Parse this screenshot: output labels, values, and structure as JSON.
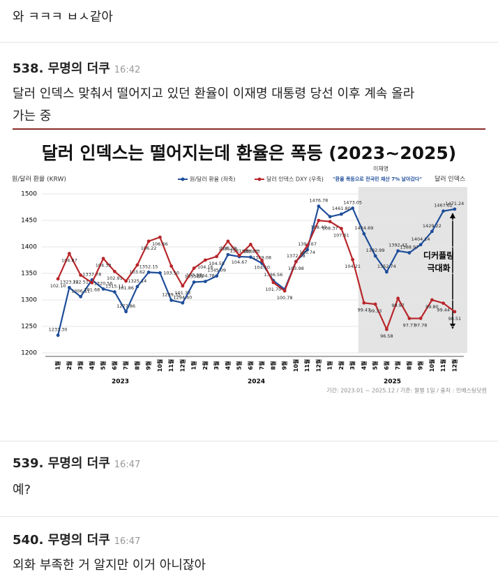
{
  "prev_text": "와 ㅋㅋㅋ ㅂㅅ같아",
  "posts": [
    {
      "number": "538.",
      "author": "무명의 더쿠",
      "time": "16:42",
      "text": [
        "달러 인덱스 맞춰서 떨어지고 있던 환율이 이재명 대통령 당선 이후 계속 올라",
        "가는 중"
      ]
    },
    {
      "number": "539.",
      "author": "무명의 더쿠",
      "time": "16:47",
      "text": [
        "예?"
      ]
    },
    {
      "number": "540.",
      "author": "무명의 더쿠",
      "time": "16:47",
      "text": [
        "외화 부족한 거 알지만 이거 아니잖아"
      ]
    }
  ],
  "chart_data": {
    "type": "line",
    "title": "달러 인덱스는 떨어지는데 환율은 폭등 (2023~2025)",
    "y_label": "원/달러 환율 (KRW)",
    "right_label": "달러 인덱스",
    "annotation_name": "이재명",
    "annotation_quote": "\"환율 폭등으로 전국민 재산 7% 날아갔다\"",
    "decoupling": [
      "디커플링",
      "극대화"
    ],
    "footnote": "기간: 2023.01 ~ 2025.12 / 기준: 월별 1일 / 출처 : 인베스팅닷컴",
    "years": [
      "2023",
      "2024",
      "2025"
    ],
    "categories": [
      "1월",
      "2월",
      "3월",
      "4월",
      "5월",
      "6월",
      "7월",
      "8월",
      "9월",
      "10월",
      "11월",
      "12월",
      "1월",
      "2월",
      "3월",
      "4월",
      "5월",
      "6월",
      "7월",
      "8월",
      "9월",
      "10월",
      "11월",
      "12월",
      "1월",
      "2월",
      "3월",
      "4월",
      "5월",
      "6월",
      "7월",
      "8월",
      "9월",
      "10월",
      "11월",
      "12월"
    ],
    "ylim": [
      1200,
      1500
    ],
    "yticks": [
      1200,
      1250,
      1300,
      1350,
      1400,
      1450,
      1500
    ],
    "y2lim": [
      94,
      111.4
    ],
    "series": [
      {
        "name": "원/달러 환율 (좌축)",
        "color": "#1f4e9a",
        "values": [
          1233.3,
          1323.22,
          1306.11,
          1337.78,
          1320.56,
          1315.11,
          1277.86,
          1325.14,
          1352.15,
          1351,
          1299.35,
          1294.4,
          1333.59,
          1334.78,
          1345.09,
          1385.38,
          1381.68,
          1380.73,
          1369.08,
          1336.56,
          1320,
          1372.58,
          1394.67,
          1476.78,
          1457,
          1461.8,
          1473.05,
          1424.69,
          1382.99,
          1352.74,
          1392.47,
          1388.97,
          1404.14,
          1429.22,
          1467.62,
          1471.24
        ],
        "value_labels": [
          "1233.30",
          "1323.22",
          "1306.11",
          "1337.78",
          "1320.56",
          "1315.11",
          "1277.86",
          "1325.14",
          "1352.15",
          null,
          "1299.35",
          "1294.40",
          "1333.59",
          "1334.78",
          "1345.09",
          "1385.38",
          "1381.68",
          "1380.73",
          "1369.08",
          "1336.56",
          null,
          "1372.58",
          "1394.67",
          "1476.78",
          null,
          "1461.80",
          "1473.05",
          "1424.69",
          "1382.99",
          "1352.74",
          "1392.47",
          "1388.97",
          "1404.14",
          "1429.22",
          "1467.62",
          "1471.24"
        ]
      },
      {
        "name": "달러 인덱스 DXY (우축)",
        "color": "#b8262b",
        "axis": "y2",
        "values": [
          102.1,
          104.87,
          102.51,
          101.68,
          104.33,
          102.91,
          101.86,
          103.62,
          106.22,
          106.66,
          103.5,
          101.33,
          103.27,
          104.16,
          104.55,
          106.22,
          104.67,
          105.87,
          104.1,
          101.7,
          100.78,
          103.98,
          105.74,
          108.49,
          108.37,
          107.61,
          104.21,
          99.47,
          99.33,
          96.58,
          99.97,
          97.77,
          97.78,
          99.8,
          99.44,
          98.51
        ],
        "value_labels": [
          "102.10",
          "104.87",
          "102.51",
          "101.68",
          "104.33",
          "102.91",
          "101.86",
          "103.62",
          "106.22",
          "106.66",
          "103.50",
          "101.33",
          "103.27",
          "104.16",
          "104.55",
          "106.22",
          "104.67",
          "105.87",
          "104.10",
          "101.70",
          "100.78",
          "103.98",
          "105.74",
          "108.49",
          "108.37",
          "107.61",
          "104.21",
          "99.47",
          "99.33",
          "96.58",
          "99.97",
          "97.77",
          "97.78",
          "99.80",
          "99.44",
          "98.51"
        ]
      }
    ]
  }
}
